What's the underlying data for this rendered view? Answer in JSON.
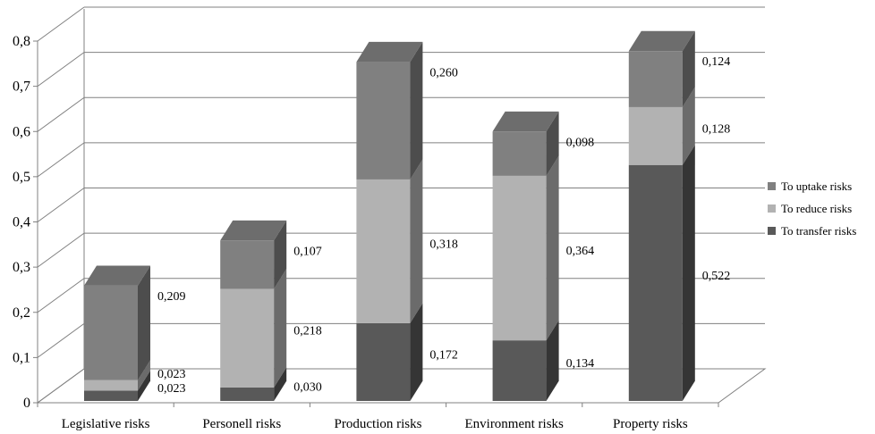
{
  "chart_data": {
    "type": "bar",
    "stacked": true,
    "three_d": true,
    "title": "",
    "xlabel": "",
    "ylabel": "",
    "ylim": [
      0,
      0.8
    ],
    "yticks": [
      "0",
      "0,1",
      "0,2",
      "0,3",
      "0,4",
      "0,5",
      "0,6",
      "0,7",
      "0,8"
    ],
    "grid": true,
    "legend_position": "right",
    "categories": [
      "Legislative risks",
      "Personell risks",
      "Production risks",
      "Environment risks",
      "Property risks"
    ],
    "series": [
      {
        "name": "To transfer risks",
        "values": [
          0.023,
          0.03,
          0.172,
          0.134,
          0.522
        ],
        "labels": [
          "0,023",
          "0,030",
          "0,172",
          "0,134",
          "0,522"
        ],
        "color": "#595959"
      },
      {
        "name": "To reduce risks",
        "values": [
          0.023,
          0.218,
          0.318,
          0.364,
          0.128
        ],
        "labels": [
          "0,023",
          "0,218",
          "0,318",
          "0,364",
          "0,128"
        ],
        "color": "#b2b2b2"
      },
      {
        "name": "To uptake risks",
        "values": [
          0.209,
          0.107,
          0.26,
          0.098,
          0.124
        ],
        "labels": [
          "0,209",
          "0,107",
          "0,260",
          "0,098",
          "0,124"
        ],
        "color": "#808080"
      }
    ],
    "legend_order": [
      "To uptake risks",
      "To reduce risks",
      "To transfer risks"
    ]
  }
}
